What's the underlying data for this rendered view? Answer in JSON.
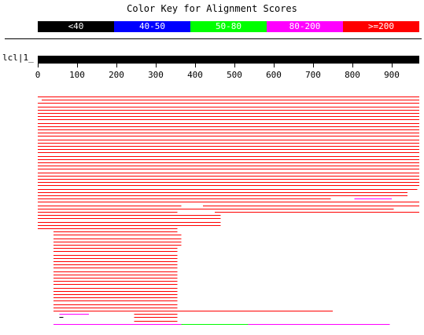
{
  "title": "Color Key for Alignment Scores",
  "color_key": [
    {
      "label": "<40",
      "color": "#000000"
    },
    {
      "label": "40-50",
      "color": "#0000ff"
    },
    {
      "label": "50-80",
      "color": "#00ff00"
    },
    {
      "label": "80-200",
      "color": "#ff00ff"
    },
    {
      "label": ">=200",
      "color": "#ff0000"
    }
  ],
  "query": {
    "label": "lcl|1_",
    "color": "#000000"
  },
  "axis": {
    "min": 0,
    "max": 970,
    "ticks": [
      0,
      100,
      200,
      300,
      400,
      500,
      600,
      700,
      800,
      900
    ]
  },
  "hits": [
    {
      "segments": [
        [
          0,
          970,
          ">=200"
        ]
      ]
    },
    {
      "segments": [
        [
          10,
          970,
          ">=200"
        ]
      ]
    },
    {
      "segments": [
        [
          0,
          970,
          ">=200"
        ]
      ]
    },
    {
      "segments": [
        [
          0,
          970,
          ">=200"
        ]
      ]
    },
    {
      "segments": [
        [
          0,
          970,
          ">=200"
        ]
      ]
    },
    {
      "segments": [
        [
          0,
          970,
          ">=200"
        ]
      ]
    },
    {
      "segments": [
        [
          0,
          970,
          ">=200"
        ]
      ]
    },
    {
      "segments": [
        [
          0,
          970,
          ">=200"
        ]
      ]
    },
    {
      "segments": [
        [
          0,
          970,
          ">=200"
        ]
      ]
    },
    {
      "segments": [
        [
          0,
          970,
          ">=200"
        ]
      ]
    },
    {
      "segments": [
        [
          0,
          970,
          ">=200"
        ]
      ]
    },
    {
      "segments": [
        [
          0,
          970,
          ">=200"
        ]
      ]
    },
    {
      "segments": [
        [
          0,
          970,
          ">=200"
        ]
      ]
    },
    {
      "segments": [
        [
          0,
          970,
          ">=200"
        ]
      ]
    },
    {
      "segments": [
        [
          0,
          970,
          ">=200"
        ]
      ]
    },
    {
      "segments": [
        [
          0,
          970,
          ">=200"
        ]
      ]
    },
    {
      "segments": [
        [
          0,
          970,
          ">=200"
        ]
      ]
    },
    {
      "segments": [
        [
          0,
          970,
          ">=200"
        ]
      ]
    },
    {
      "segments": [
        [
          0,
          970,
          ">=200"
        ]
      ]
    },
    {
      "segments": [
        [
          0,
          970,
          ">=200"
        ]
      ]
    },
    {
      "segments": [
        [
          0,
          970,
          ">=200"
        ]
      ]
    },
    {
      "segments": [
        [
          0,
          970,
          ">=200"
        ]
      ]
    },
    {
      "segments": [
        [
          0,
          970,
          ">=200"
        ]
      ]
    },
    {
      "segments": [
        [
          0,
          970,
          ">=200"
        ]
      ]
    },
    {
      "segments": [
        [
          0,
          970,
          ">=200"
        ]
      ]
    },
    {
      "segments": [
        [
          0,
          970,
          ">=200"
        ]
      ]
    },
    {
      "segments": [
        [
          0,
          970,
          ">=200"
        ]
      ]
    },
    {
      "segments": [
        [
          0,
          970,
          ">=200"
        ]
      ]
    },
    {
      "segments": [
        [
          0,
          965,
          ">=200"
        ]
      ]
    },
    {
      "segments": [
        [
          0,
          940,
          ">=200"
        ]
      ]
    },
    {
      "segments": [
        [
          0,
          940,
          ">=200"
        ]
      ]
    },
    {
      "segments": [
        [
          0,
          745,
          ">=200"
        ],
        [
          805,
          900,
          "80-200"
        ]
      ]
    },
    {
      "segments": [
        [
          0,
          970,
          ">=200"
        ]
      ]
    },
    {
      "segments": [
        [
          0,
          365,
          ">=200"
        ],
        [
          420,
          970,
          ">=200"
        ]
      ]
    },
    {
      "segments": [
        [
          0,
          905,
          ">=200"
        ]
      ]
    },
    {
      "segments": [
        [
          0,
          355,
          ">=200"
        ],
        [
          450,
          970,
          ">=200"
        ]
      ]
    },
    {
      "segments": [
        [
          0,
          465,
          ">=200"
        ]
      ]
    },
    {
      "segments": [
        [
          0,
          465,
          ">=200"
        ]
      ]
    },
    {
      "segments": [
        [
          0,
          465,
          ">=200"
        ]
      ]
    },
    {
      "segments": [
        [
          0,
          465,
          ">=200"
        ]
      ]
    },
    {
      "segments": [
        [
          0,
          355,
          ">=200"
        ]
      ]
    },
    {
      "segments": [
        [
          40,
          355,
          ">=200"
        ]
      ]
    },
    {
      "segments": [
        [
          40,
          365,
          ">=200"
        ]
      ]
    },
    {
      "segments": [
        [
          40,
          365,
          ">=200"
        ]
      ]
    },
    {
      "segments": [
        [
          40,
          365,
          ">=200"
        ]
      ]
    },
    {
      "segments": [
        [
          40,
          365,
          ">=200"
        ]
      ]
    },
    {
      "segments": [
        [
          40,
          355,
          ">=200"
        ]
      ]
    },
    {
      "segments": [
        [
          40,
          355,
          ">=200"
        ]
      ]
    },
    {
      "segments": [
        [
          40,
          355,
          ">=200"
        ]
      ]
    },
    {
      "segments": [
        [
          40,
          355,
          ">=200"
        ]
      ]
    },
    {
      "segments": [
        [
          40,
          355,
          ">=200"
        ]
      ]
    },
    {
      "segments": [
        [
          40,
          355,
          ">=200"
        ]
      ]
    },
    {
      "segments": [
        [
          40,
          355,
          ">=200"
        ]
      ]
    },
    {
      "segments": [
        [
          40,
          355,
          ">=200"
        ]
      ]
    },
    {
      "segments": [
        [
          40,
          355,
          ">=200"
        ]
      ]
    },
    {
      "segments": [
        [
          40,
          355,
          ">=200"
        ]
      ]
    },
    {
      "segments": [
        [
          40,
          355,
          ">=200"
        ]
      ]
    },
    {
      "segments": [
        [
          40,
          355,
          ">=200"
        ]
      ]
    },
    {
      "segments": [
        [
          40,
          355,
          ">=200"
        ]
      ]
    },
    {
      "segments": [
        [
          40,
          355,
          ">=200"
        ]
      ]
    },
    {
      "segments": [
        [
          40,
          355,
          ">=200"
        ]
      ]
    },
    {
      "segments": [
        [
          40,
          355,
          ">=200"
        ]
      ]
    },
    {
      "segments": [
        [
          40,
          355,
          ">=200"
        ]
      ]
    },
    {
      "segments": [
        [
          40,
          355,
          ">=200"
        ]
      ]
    },
    {
      "segments": [
        [
          40,
          355,
          ">=200"
        ]
      ]
    },
    {
      "segments": [
        [
          40,
          750,
          ">=200"
        ]
      ]
    },
    {
      "segments": [
        [
          55,
          130,
          "80-200"
        ],
        [
          245,
          355,
          ">=200"
        ]
      ]
    },
    {
      "segments": [
        [
          55,
          65,
          "<40"
        ],
        [
          245,
          355,
          ">=200"
        ]
      ]
    },
    {
      "segments": [
        [
          245,
          355,
          ">=200"
        ]
      ]
    },
    {
      "segments": [
        [
          40,
          365,
          "80-200"
        ],
        [
          365,
          535,
          "50-80"
        ],
        [
          535,
          895,
          "80-200"
        ]
      ]
    }
  ]
}
